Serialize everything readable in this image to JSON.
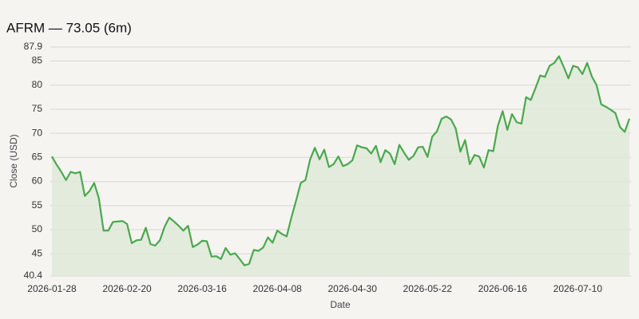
{
  "chart_data": {
    "type": "area",
    "title": "AFRM — 73.05 (6m)",
    "x_label": "Date",
    "y_label": "Close (USD)",
    "color": "#4aa84e",
    "area_color": "#dfe9d8",
    "grid": true,
    "ylim": [
      40.4,
      87.9
    ],
    "yticks": [
      40.4,
      45,
      50,
      55,
      60,
      65,
      70,
      75,
      80,
      85,
      87.9
    ],
    "categories": [
      "2026-01-28",
      null,
      null,
      null,
      null,
      null,
      null,
      null,
      null,
      null,
      null,
      null,
      null,
      null,
      null,
      null,
      "2026-02-20",
      null,
      null,
      null,
      null,
      null,
      null,
      null,
      null,
      null,
      null,
      null,
      null,
      null,
      null,
      null,
      "2026-03-16",
      null,
      null,
      null,
      null,
      null,
      null,
      null,
      null,
      null,
      null,
      null,
      null,
      null,
      null,
      null,
      "2026-04-08",
      null,
      null,
      null,
      null,
      null,
      null,
      null,
      null,
      null,
      null,
      null,
      null,
      null,
      null,
      null,
      "2026-04-30",
      null,
      null,
      null,
      null,
      null,
      null,
      null,
      null,
      null,
      null,
      null,
      null,
      null,
      null,
      null,
      "2026-05-22",
      null,
      null,
      null,
      null,
      null,
      null,
      null,
      null,
      null,
      null,
      null,
      null,
      null,
      null,
      null,
      "2026-06-16",
      null,
      null,
      null,
      null,
      null,
      null,
      null,
      null,
      null,
      null,
      null,
      null,
      null,
      null,
      null,
      "2026-07-10",
      null,
      null,
      null,
      null,
      null,
      null,
      null,
      null,
      null,
      null,
      null
    ],
    "values": [
      65.2,
      63.5,
      62,
      60.3,
      62,
      61.7,
      62,
      57,
      58,
      59.7,
      56.5,
      49.8,
      49.8,
      51.6,
      51.7,
      51.8,
      51.2,
      47.2,
      47.8,
      47.9,
      50.4,
      47,
      46.7,
      47.8,
      50.6,
      52.5,
      51.7,
      50.8,
      49.8,
      50.8,
      46.4,
      46.9,
      47.7,
      47.6,
      44.4,
      44.5,
      43.9,
      46.2,
      44.8,
      45.1,
      43.9,
      42.6,
      42.9,
      45.8,
      45.6,
      46.3,
      48.4,
      47.3,
      49.8,
      49.1,
      48.6,
      52.5,
      56,
      59.7,
      60.3,
      64.6,
      67,
      64.6,
      66.6,
      63,
      63.6,
      65.2,
      63.2,
      63.6,
      64.4,
      67.5,
      67.1,
      66.9,
      65.8,
      67.4,
      64,
      66.5,
      65.8,
      63.6,
      67.6,
      66,
      64.5,
      65.3,
      67.1,
      67.2,
      65.1,
      69.3,
      70.4,
      73,
      73.5,
      72.9,
      71,
      66.2,
      68.6,
      63.6,
      65.5,
      65.2,
      62.9,
      66.5,
      66.3,
      71.6,
      74.6,
      70.7,
      74,
      72.3,
      72,
      77.5,
      76.9,
      79.4,
      82,
      81.7,
      84,
      84.6,
      86,
      83.8,
      81.4,
      84,
      83.7,
      82.3,
      84.6,
      81.8,
      80,
      76,
      75.5,
      74.9,
      74.2,
      71.3,
      70.3,
      73.05
    ]
  }
}
